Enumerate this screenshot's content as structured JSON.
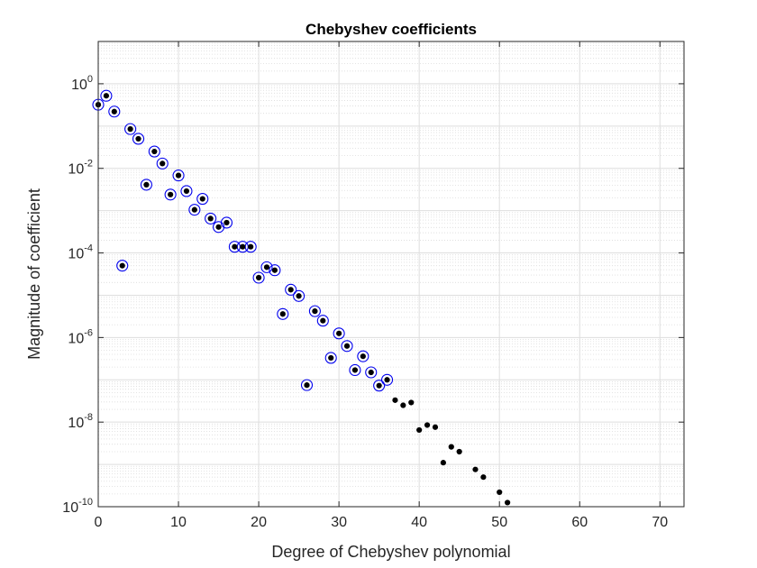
{
  "chart_data": {
    "type": "scatter",
    "title": "Chebyshev coefficients",
    "xlabel": "Degree of Chebyshev polynomial",
    "ylabel": "Magnitude of coefficient",
    "xlim": [
      0,
      73
    ],
    "ylim": [
      1e-10,
      10
    ],
    "yscale": "log",
    "grid": true,
    "minor_grid": true,
    "box": true,
    "xticks": [
      0,
      10,
      20,
      30,
      40,
      50,
      60,
      70
    ],
    "xtick_labels": [
      "0",
      "10",
      "20",
      "30",
      "40",
      "50",
      "60",
      "70"
    ],
    "yticks": [
      1,
      0.01,
      0.0001,
      1e-06,
      1e-08,
      1e-10
    ],
    "ytick_labels": [
      {
        "base": "10",
        "exp": "0"
      },
      {
        "base": "10",
        "exp": "-2"
      },
      {
        "base": "10",
        "exp": "-4"
      },
      {
        "base": "10",
        "exp": "-6"
      },
      {
        "base": "10",
        "exp": "-8"
      },
      {
        "base": "10",
        "exp": "-10"
      }
    ],
    "series": [
      {
        "marker": "filled-dot",
        "color": "#000000",
        "x": [
          0,
          1,
          2,
          3,
          4,
          5,
          6,
          7,
          8,
          9,
          10,
          11,
          12,
          13,
          14,
          15,
          16,
          17,
          18,
          19,
          20,
          21,
          22,
          23,
          24,
          25,
          26,
          27,
          28,
          29,
          30,
          31,
          32,
          33,
          34,
          35,
          36,
          37,
          38,
          39,
          40,
          41,
          42,
          43,
          44,
          45,
          47,
          48,
          50,
          51
        ],
        "y": [
          0.32,
          0.52,
          0.22,
          5e-05,
          0.085,
          0.05,
          0.0041,
          0.025,
          0.013,
          0.0024,
          0.0068,
          0.0029,
          0.00105,
          0.0019,
          0.00065,
          0.00041,
          0.00052,
          0.00014,
          0.00014,
          0.00014,
          2.6e-05,
          4.6e-05,
          3.9e-05,
          3.6e-06,
          1.35e-05,
          9.6e-06,
          7.5e-08,
          4.2e-06,
          2.5e-06,
          3.3e-07,
          1.25e-06,
          6.3e-07,
          1.7e-07,
          3.6e-07,
          1.5e-07,
          7.3e-08,
          1e-07,
          3.3e-08,
          2.5e-08,
          2.9e-08,
          6.5e-09,
          8.5e-09,
          7.6e-09,
          1.1e-09,
          2.6e-09,
          2e-09,
          7.6e-10,
          5e-10,
          2.2e-10,
          1.25e-10
        ]
      },
      {
        "marker": "open-circle",
        "color": "#0000ee",
        "x": [
          0,
          1,
          2,
          3,
          4,
          5,
          6,
          7,
          8,
          9,
          10,
          11,
          12,
          13,
          14,
          15,
          16,
          17,
          18,
          19,
          20,
          21,
          22,
          23,
          24,
          25,
          26,
          27,
          28,
          29,
          30,
          31,
          32,
          33,
          34,
          35,
          36
        ],
        "y": [
          0.32,
          0.52,
          0.22,
          5e-05,
          0.085,
          0.05,
          0.0041,
          0.025,
          0.013,
          0.0024,
          0.0068,
          0.0029,
          0.00105,
          0.0019,
          0.00065,
          0.00041,
          0.00052,
          0.00014,
          0.00014,
          0.00014,
          2.6e-05,
          4.6e-05,
          3.9e-05,
          3.6e-06,
          1.35e-05,
          9.6e-06,
          7.5e-08,
          4.2e-06,
          2.5e-06,
          3.3e-07,
          1.25e-06,
          6.3e-07,
          1.7e-07,
          3.6e-07,
          1.5e-07,
          7.3e-08,
          1e-07
        ]
      }
    ]
  }
}
